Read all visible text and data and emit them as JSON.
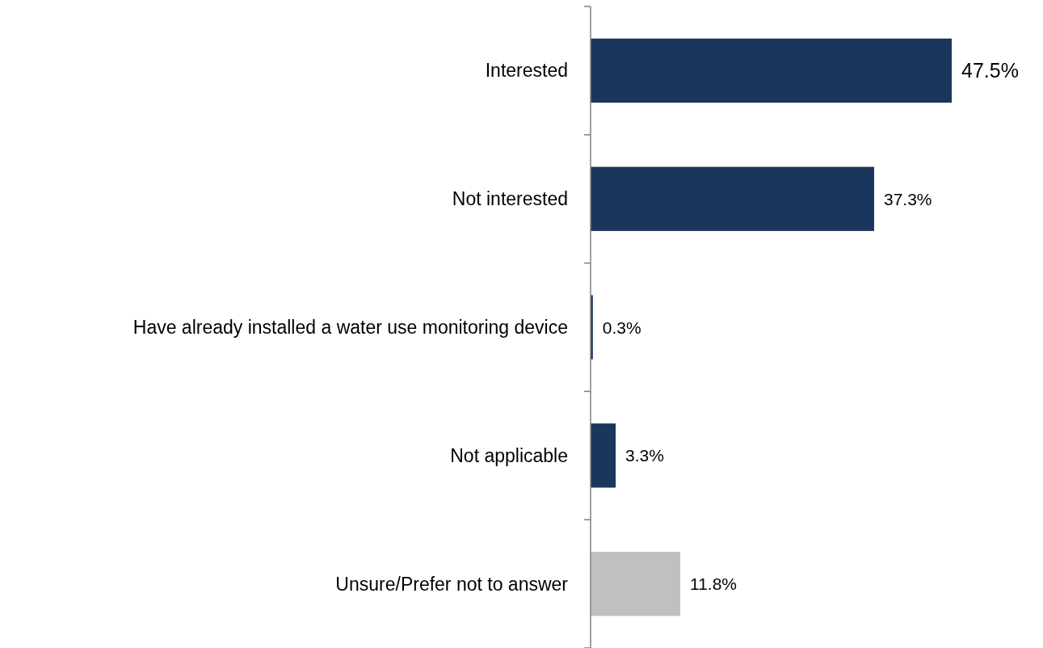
{
  "chart_data": {
    "type": "bar",
    "orientation": "horizontal",
    "categories": [
      "Interested",
      "Not interested",
      "Have already installed a water use monitoring device",
      "Not applicable",
      "Unsure/Prefer not to answer"
    ],
    "values": [
      47.5,
      37.3,
      0.3,
      3.3,
      11.8
    ],
    "colors": [
      "#1b365d",
      "#1b365d",
      "#1b365d",
      "#1b365d",
      "#c0c0c0"
    ],
    "value_labels": [
      "47.5%",
      "37.3%",
      "0.3%",
      "3.3%",
      "11.8%"
    ]
  }
}
